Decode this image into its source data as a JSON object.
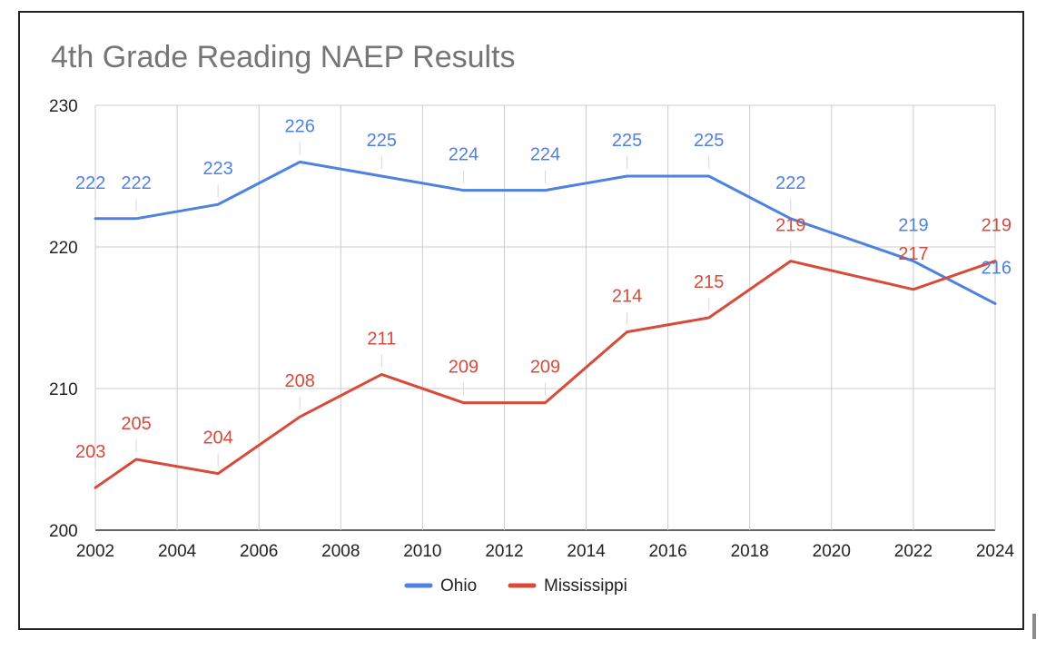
{
  "chart_data": {
    "type": "line",
    "title": "4th Grade Reading NAEP Results",
    "xlabel": "",
    "ylabel": "",
    "xlim": [
      2002,
      2024
    ],
    "ylim": [
      200,
      230
    ],
    "xticks": [
      2002,
      2004,
      2006,
      2008,
      2010,
      2012,
      2014,
      2016,
      2018,
      2020,
      2022,
      2024
    ],
    "yticks": [
      200,
      210,
      220,
      230
    ],
    "grid": true,
    "legend_position": "bottom",
    "series": [
      {
        "name": "Ohio",
        "color": "#4f81e0",
        "x": [
          2002,
          2003,
          2005,
          2007,
          2009,
          2011,
          2013,
          2015,
          2017,
          2019,
          2022,
          2024
        ],
        "values": [
          222,
          222,
          223,
          226,
          225,
          224,
          224,
          225,
          225,
          222,
          219,
          216
        ]
      },
      {
        "name": "Mississippi",
        "color": "#d84a3a",
        "x": [
          2002,
          2003,
          2005,
          2007,
          2009,
          2011,
          2013,
          2015,
          2017,
          2019,
          2022,
          2024
        ],
        "values": [
          203,
          205,
          204,
          208,
          211,
          209,
          209,
          214,
          215,
          219,
          217,
          219
        ]
      }
    ]
  }
}
